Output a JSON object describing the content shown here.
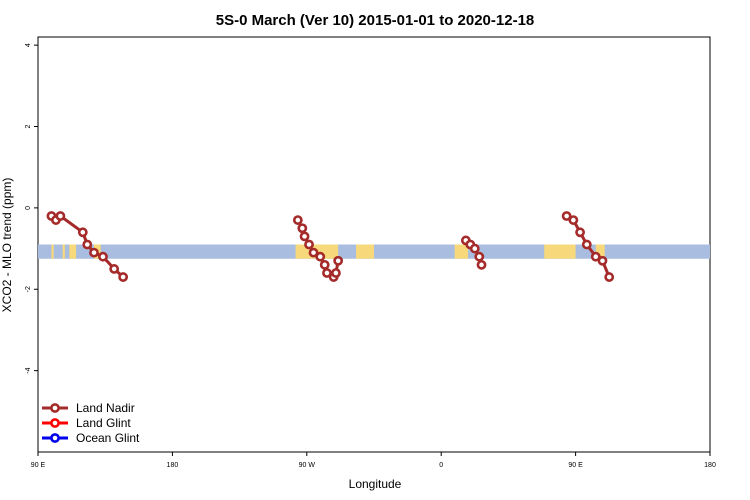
{
  "chart_data": {
    "type": "line",
    "title": "5S-0 March (Ver 10)   2015-01-01 to 2020-12-18",
    "xlabel": "Longitude",
    "ylabel": "XCO2 - MLO trend (ppm)",
    "xlim": [
      -90,
      210
    ],
    "ylim": [
      -6,
      4.2
    ],
    "xticks": [
      {
        "value": -90,
        "label": "90 E"
      },
      {
        "value": -30,
        "label": "180"
      },
      {
        "value": 30,
        "label": "90 W"
      },
      {
        "value": 90,
        "label": "0"
      },
      {
        "value": 150,
        "label": "90 E"
      },
      {
        "value": 210,
        "label": "180"
      }
    ],
    "yticks": [
      {
        "value": 4,
        "label": "4"
      },
      {
        "value": 2,
        "label": "2"
      },
      {
        "value": 0,
        "label": "0"
      },
      {
        "value": -2,
        "label": "-2"
      },
      {
        "value": -4,
        "label": "-4"
      }
    ],
    "band": {
      "y_low": -1.25,
      "y_high": -0.9,
      "color": "#a9bde0",
      "highlight_color": "#f7d87a",
      "highlights": [
        [
          -84,
          -83
        ],
        [
          -79,
          -78
        ],
        [
          -76,
          -73
        ],
        [
          -65,
          -62
        ],
        [
          25,
          44
        ],
        [
          52,
          60
        ],
        [
          96,
          102
        ],
        [
          136,
          150
        ],
        [
          159,
          163
        ]
      ]
    },
    "legend": {
      "position": "bottom-left"
    },
    "series": [
      {
        "name": "Land Nadir",
        "color": "#a52a2a",
        "x": [
          -84,
          -82,
          -80,
          -70,
          -68,
          -65,
          -61,
          -56,
          -52,
          26,
          28,
          29,
          31,
          33,
          36,
          38,
          39,
          42,
          43,
          44,
          101,
          103,
          105,
          107,
          108,
          146,
          149,
          152,
          155,
          159,
          162,
          165
        ],
        "y": [
          -0.2,
          -0.3,
          -0.2,
          -0.6,
          -0.9,
          -1.1,
          -1.2,
          -1.5,
          -1.7,
          -0.3,
          -0.5,
          -0.7,
          -0.9,
          -1.1,
          -1.2,
          -1.4,
          -1.6,
          -1.7,
          -1.6,
          -1.3,
          -0.8,
          -0.9,
          -1.0,
          -1.2,
          -1.4,
          -0.2,
          -0.3,
          -0.6,
          -0.9,
          -1.2,
          -1.3,
          -1.7
        ],
        "connect": [
          [
            0,
            8
          ],
          [
            9,
            14
          ],
          [
            14,
            19
          ],
          [
            20,
            24
          ],
          [
            25,
            31
          ]
        ]
      }
    ]
  },
  "legend_items": [
    {
      "name": "Land Nadir",
      "color": "#a52a2a"
    },
    {
      "name": "Land Glint",
      "color": "#ff0000"
    },
    {
      "name": "Ocean Glint",
      "color": "#0000ee"
    }
  ]
}
